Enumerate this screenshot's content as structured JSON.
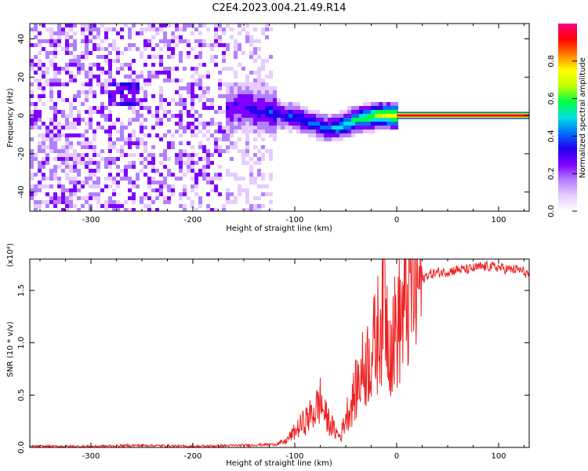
{
  "figure": {
    "title": "C2E4.2023.004.21.49.R14"
  },
  "chart_data": [
    {
      "type": "heatmap",
      "xlabel": "Height of straight line (km)",
      "ylabel": "Frequency (Hz)",
      "xlim": [
        -360,
        130
      ],
      "ylim": [
        -50,
        48
      ],
      "xticks": [
        "-300",
        "-200",
        "-100",
        "0",
        "100"
      ],
      "xtick_values": [
        -300,
        -200,
        -100,
        0,
        100
      ],
      "yticks": [
        "-40",
        "-20",
        "0",
        "20",
        "40"
      ],
      "ytick_values": [
        -40,
        -20,
        0,
        20,
        40
      ],
      "colorbar": {
        "label": "Normalized spectral amplitude",
        "range": [
          0,
          1
        ],
        "ticks": [
          "0.0",
          "0.2",
          "0.4",
          "0.6",
          "0.8"
        ],
        "tick_values": [
          0.0,
          0.2,
          0.4,
          0.6,
          0.8
        ],
        "colormap": [
          "#ffffff",
          "#e6ccff",
          "#b280ff",
          "#7f00ff",
          "#2200ee",
          "#0070ff",
          "#00e0e0",
          "#00ff40",
          "#c0ff00",
          "#ffff00",
          "#ff8000",
          "#ff0000",
          "#ff0080"
        ]
      },
      "ridge_track": {
        "x": [
          -170,
          -160,
          -150,
          -140,
          -130,
          -120,
          -110,
          -100,
          -90,
          -80,
          -70,
          -60,
          -50,
          -40,
          -30,
          -20,
          -10,
          0,
          130
        ],
        "y": [
          3,
          5,
          6,
          4,
          3,
          2,
          1,
          0,
          -2,
          -4,
          -6,
          -5,
          -3,
          -1,
          0,
          1,
          1,
          1,
          1
        ]
      },
      "steady_band": {
        "x_range": [
          0,
          130
        ],
        "frequency": 0
      }
    },
    {
      "type": "line",
      "xlabel": "Height of straight line (km)",
      "ylabel": "SNR (10 * v/v)",
      "scale_label": "(x10⁴)",
      "xlim": [
        -360,
        130
      ],
      "ylim": [
        0,
        1.8
      ],
      "xticks": [
        "-300",
        "-200",
        "-100",
        "0",
        "100"
      ],
      "xtick_values": [
        -300,
        -200,
        -100,
        0,
        100
      ],
      "yticks": [
        "0.0",
        "0.5",
        "1.0",
        "1.5"
      ],
      "ytick_values": [
        0.0,
        0.5,
        1.0,
        1.5
      ],
      "series": [
        {
          "color": "#ee2222",
          "x": [
            -360,
            -300,
            -250,
            -200,
            -150,
            -120,
            -110,
            -100,
            -90,
            -80,
            -75,
            -70,
            -60,
            -55,
            -50,
            -45,
            -40,
            -35,
            -30,
            -25,
            -20,
            -15,
            -12,
            -10,
            -5,
            0,
            5,
            10,
            15,
            20,
            25,
            30,
            40,
            50,
            60,
            70,
            80,
            90,
            100,
            110,
            120,
            130
          ],
          "y": [
            0.01,
            0.01,
            0.02,
            0.01,
            0.02,
            0.03,
            0.05,
            0.15,
            0.25,
            0.35,
            0.45,
            0.3,
            0.15,
            0.1,
            0.3,
            0.4,
            0.55,
            0.7,
            0.8,
            0.9,
            1.0,
            1.3,
            1.8,
            1.2,
            1.0,
            1.15,
            1.25,
            1.4,
            1.55,
            1.55,
            1.6,
            1.65,
            1.67,
            1.68,
            1.7,
            1.7,
            1.72,
            1.73,
            1.72,
            1.7,
            1.7,
            1.65
          ]
        }
      ]
    }
  ]
}
